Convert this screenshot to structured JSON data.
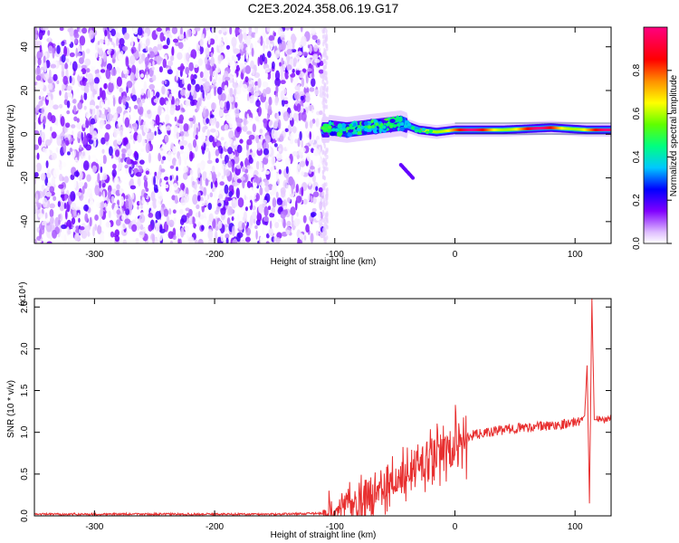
{
  "title": "C2E3.2024.358.06.19.G17",
  "chart_data": [
    {
      "type": "heatmap",
      "xlabel": "Height of straight line (km)",
      "ylabel": "Frequency (Hz)",
      "xlim": [
        -350,
        130
      ],
      "ylim": [
        -50,
        49
      ],
      "xticks": [
        -300,
        -200,
        -100,
        0,
        100
      ],
      "yticks": [
        -40,
        -20,
        0,
        20,
        40
      ],
      "colorbar": {
        "label": "Normalized spectral amplitude",
        "range": [
          0.0,
          1.0
        ],
        "ticks": [
          "0.0",
          "0.2",
          "0.4",
          "0.6",
          "0.8"
        ],
        "colors": [
          "#ffffff",
          "#d9b3ff",
          "#7a00ff",
          "#0000ff",
          "#00c8ff",
          "#00ff60",
          "#a0ff00",
          "#ffff00",
          "#ff8000",
          "#ff0000",
          "#ff0080"
        ]
      },
      "regions": [
        {
          "x": [
            -350,
            -110
          ],
          "freq": [
            -50,
            49
          ],
          "amplitude": [
            0.0,
            0.25
          ],
          "description": "noise"
        },
        {
          "x": [
            -110,
            -40
          ],
          "freq": [
            -8,
            10
          ],
          "amplitude": [
            0.2,
            0.55
          ]
        },
        {
          "x": [
            -40,
            110
          ],
          "freq": [
            -2,
            5
          ],
          "amplitude": [
            0.6,
            1.0
          ]
        },
        {
          "x": [
            -45,
            -35
          ],
          "freq": [
            -20,
            -14
          ],
          "amplitude": [
            0.2,
            0.3
          ]
        }
      ],
      "ridge": [
        {
          "x": -105,
          "freq": 3
        },
        {
          "x": -90,
          "freq": 2
        },
        {
          "x": -75,
          "freq": 3
        },
        {
          "x": -60,
          "freq": 4
        },
        {
          "x": -45,
          "freq": 5
        },
        {
          "x": -30,
          "freq": 2
        },
        {
          "x": -15,
          "freq": 1
        },
        {
          "x": 0,
          "freq": 2
        },
        {
          "x": 40,
          "freq": 2
        },
        {
          "x": 80,
          "freq": 3
        },
        {
          "x": 110,
          "freq": 2
        },
        {
          "x": 130,
          "freq": 2
        }
      ]
    },
    {
      "type": "line",
      "xlabel": "Height of straight line (km)",
      "ylabel": "SNR (10 * v/v)",
      "yscale_label": "(x10⁴)",
      "xlim": [
        -350,
        130
      ],
      "ylim": [
        0.0,
        2.6
      ],
      "xticks": [
        -300,
        -200,
        -100,
        0,
        100
      ],
      "yticks": [
        "0.0",
        "0.5",
        "1.0",
        "1.5",
        "2.0",
        "2.5"
      ],
      "color": "#e83030",
      "x": [
        -350,
        -300,
        -250,
        -200,
        -150,
        -110,
        -100,
        -90,
        -80,
        -70,
        -60,
        -50,
        -40,
        -30,
        -20,
        -10,
        0,
        10,
        20,
        30,
        40,
        50,
        60,
        70,
        80,
        90,
        100,
        105,
        108,
        110,
        112,
        114,
        116,
        120,
        130
      ],
      "y": [
        0.02,
        0.02,
        0.02,
        0.02,
        0.02,
        0.03,
        0.06,
        0.12,
        0.18,
        0.25,
        0.3,
        0.4,
        0.5,
        0.6,
        0.65,
        0.7,
        0.8,
        0.95,
        0.98,
        1.0,
        1.03,
        1.05,
        1.06,
        1.07,
        1.08,
        1.1,
        1.12,
        1.15,
        1.2,
        1.8,
        0.15,
        2.6,
        1.15,
        1.15,
        1.16
      ]
    }
  ]
}
